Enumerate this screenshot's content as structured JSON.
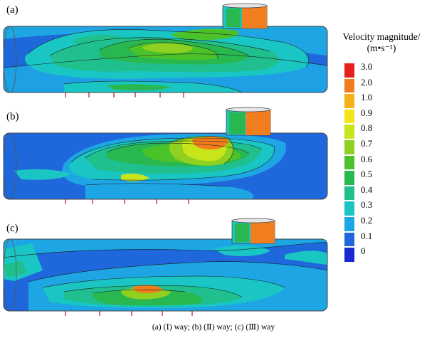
{
  "panels": [
    {
      "label": "(a)"
    },
    {
      "label": "(b)"
    },
    {
      "label": "(c)"
    }
  ],
  "legend": {
    "title": "Velocity magnitude/",
    "unit": "(m•s⁻¹)",
    "levels": [
      {
        "label": "3.0",
        "color": "#e8201c"
      },
      {
        "label": "2.0",
        "color": "#f07d1e"
      },
      {
        "label": "1.0",
        "color": "#f6b018"
      },
      {
        "label": "0.9",
        "color": "#f2e61a"
      },
      {
        "label": "0.8",
        "color": "#c8e41a"
      },
      {
        "label": "0.7",
        "color": "#8fd020"
      },
      {
        "label": "0.6",
        "color": "#4cc22a"
      },
      {
        "label": "0.5",
        "color": "#29b84f"
      },
      {
        "label": "0.4",
        "color": "#1fc08e"
      },
      {
        "label": "0.3",
        "color": "#1ac6c4"
      },
      {
        "label": "0.2",
        "color": "#1ea6e4"
      },
      {
        "label": "0.1",
        "color": "#1e68dc"
      },
      {
        "label": "0",
        "color": "#1a2ad2"
      }
    ]
  },
  "caption": "(a) (Ⅰ) way; (b) (Ⅱ) way; (c) (Ⅲ) way"
}
